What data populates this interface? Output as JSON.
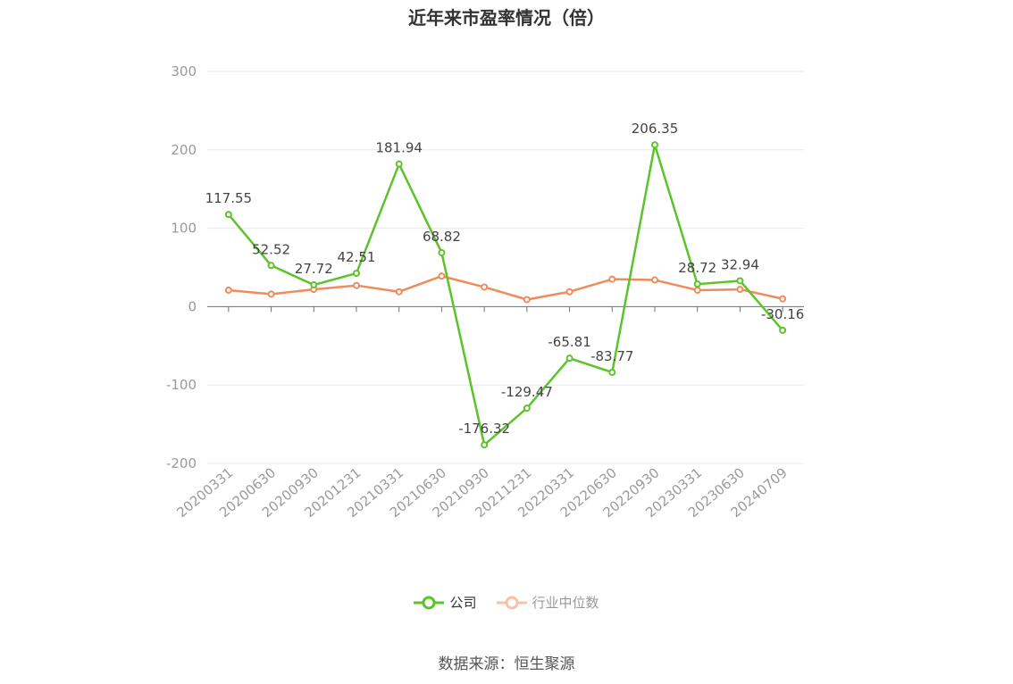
{
  "chart_data": {
    "type": "line",
    "title": "近年来市盈率情况（倍）",
    "categories": [
      "20200331",
      "20200630",
      "20200930",
      "20201231",
      "20210331",
      "20210630",
      "20210930",
      "20211231",
      "20220331",
      "20220630",
      "20220930",
      "20230331",
      "20230630",
      "20240709"
    ],
    "series": [
      {
        "name": "公司",
        "color": "#5cc32a",
        "values": [
          117.55,
          52.52,
          27.72,
          42.51,
          181.94,
          68.82,
          -176.32,
          -129.47,
          -65.81,
          -83.77,
          206.35,
          28.72,
          32.94,
          -30.16
        ],
        "labels": [
          "117.55",
          "52.52",
          "27.72",
          "42.51",
          "181.94",
          "68.82",
          "-176.32",
          "-129.47",
          "-65.81",
          "-83.77",
          "206.35",
          "28.72",
          "32.94",
          "-30.16"
        ]
      },
      {
        "name": "行业中位数",
        "color": "#f08b5b",
        "values": [
          21,
          16,
          22,
          27,
          19,
          39,
          25,
          9,
          19,
          35,
          34,
          21,
          22,
          10
        ]
      }
    ],
    "ylim": [
      -200,
      300
    ],
    "yticks": [
      "300",
      "200",
      "100",
      "0",
      "-100",
      "-200"
    ],
    "grid": true,
    "legend_position": "bottom-center"
  },
  "source": "数据来源：恒生聚源"
}
